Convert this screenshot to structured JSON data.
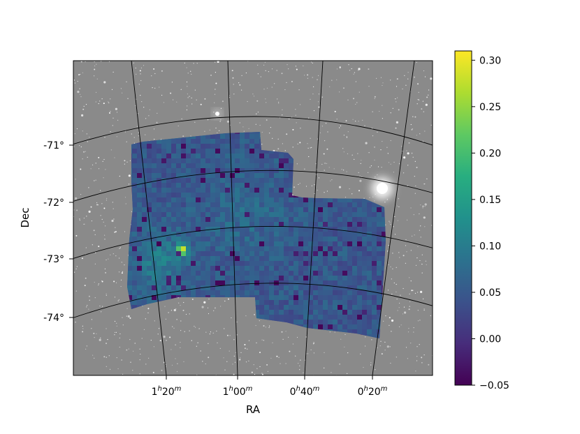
{
  "chart_data": {
    "type": "heatmap",
    "title": "",
    "xlabel": "RA",
    "ylabel": "Dec",
    "ra_ticks": [
      {
        "h": "1",
        "m": "20"
      },
      {
        "h": "1",
        "m": "00"
      },
      {
        "h": "0",
        "m": "40"
      },
      {
        "h": "0",
        "m": "20"
      }
    ],
    "dec_ticks": [
      "-71°",
      "-72°",
      "-73°",
      "-74°"
    ],
    "colorbar": {
      "colormap": "viridis",
      "range": [
        -0.05,
        0.31
      ],
      "ticks": [
        "0.30",
        "0.25",
        "0.20",
        "0.15",
        "0.10",
        "0.05",
        "0.00",
        "−0.05"
      ]
    },
    "background": "grayscale sky image with stars",
    "grid": true,
    "hotspot": {
      "ra_hm": "1h15m",
      "dec_deg": -72.8,
      "value": 0.3
    },
    "typical_value": 0.05
  }
}
